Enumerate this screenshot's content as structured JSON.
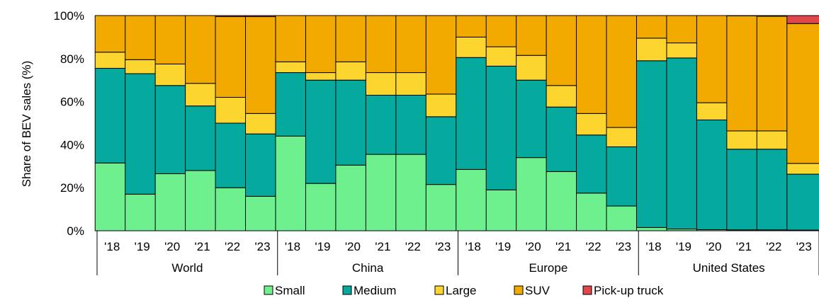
{
  "chart_data": {
    "type": "bar",
    "stacked": true,
    "percent": true,
    "title": "",
    "ylabel": "Share of BEV sales (%)",
    "xlabel": "",
    "ylim": [
      0,
      100
    ],
    "y_ticks": [
      "0%",
      "20%",
      "40%",
      "60%",
      "80%",
      "100%"
    ],
    "grid": false,
    "legend_position": "bottom",
    "groups": [
      {
        "name": "World",
        "years": [
          "'18",
          "'19",
          "'20",
          "'21",
          "'22",
          "'23"
        ]
      },
      {
        "name": "China",
        "years": [
          "'18",
          "'19",
          "'20",
          "'21",
          "'22",
          "'23"
        ]
      },
      {
        "name": "Europe",
        "years": [
          "'18",
          "'19",
          "'20",
          "'21",
          "'22",
          "'23"
        ]
      },
      {
        "name": "United States",
        "years": [
          "'18",
          "'19",
          "'20",
          "'21",
          "'22",
          "'23"
        ]
      }
    ],
    "series": [
      {
        "name": "Small",
        "color": "#6ef08f",
        "values": [
          31.5,
          17,
          26.5,
          28,
          20,
          16,
          44,
          22,
          30.5,
          35.5,
          35.5,
          21.5,
          28.5,
          19,
          34,
          27.5,
          17.5,
          11.5,
          1.5,
          0.8,
          0.5,
          0.4,
          0.4,
          0.3
        ]
      },
      {
        "name": "Medium",
        "color": "#06a99d",
        "values": [
          44,
          56,
          41,
          30,
          30,
          29,
          29.5,
          48,
          39.5,
          27.5,
          27.5,
          31.5,
          52,
          57.5,
          36,
          30,
          27,
          27.5,
          77.5,
          79.5,
          51,
          37.5,
          37.5,
          26
        ]
      },
      {
        "name": "Large",
        "color": "#fcd52f",
        "values": [
          7.5,
          6.5,
          10,
          10.5,
          12,
          9.5,
          5,
          3.5,
          8.5,
          10.5,
          10.5,
          10.5,
          9.5,
          9,
          11.5,
          10,
          10,
          9,
          10.5,
          7,
          8,
          8.5,
          8.5,
          5
        ]
      },
      {
        "name": "SUV",
        "color": "#f2a900",
        "values": [
          17,
          20.5,
          22.5,
          31.5,
          37.5,
          45,
          21.5,
          26.5,
          21.5,
          26.5,
          26.5,
          36.5,
          10,
          14.5,
          18.5,
          32.5,
          45.5,
          52,
          10.5,
          12.7,
          40.5,
          53.5,
          53.3,
          65
        ]
      },
      {
        "name": "Pick-up truck",
        "color": "#e0474c",
        "values": [
          0,
          0,
          0,
          0,
          0.5,
          0.5,
          0,
          0,
          0,
          0,
          0,
          0,
          0,
          0,
          0,
          0,
          0,
          0,
          0,
          0,
          0,
          0.1,
          0.3,
          3.7
        ]
      }
    ]
  }
}
